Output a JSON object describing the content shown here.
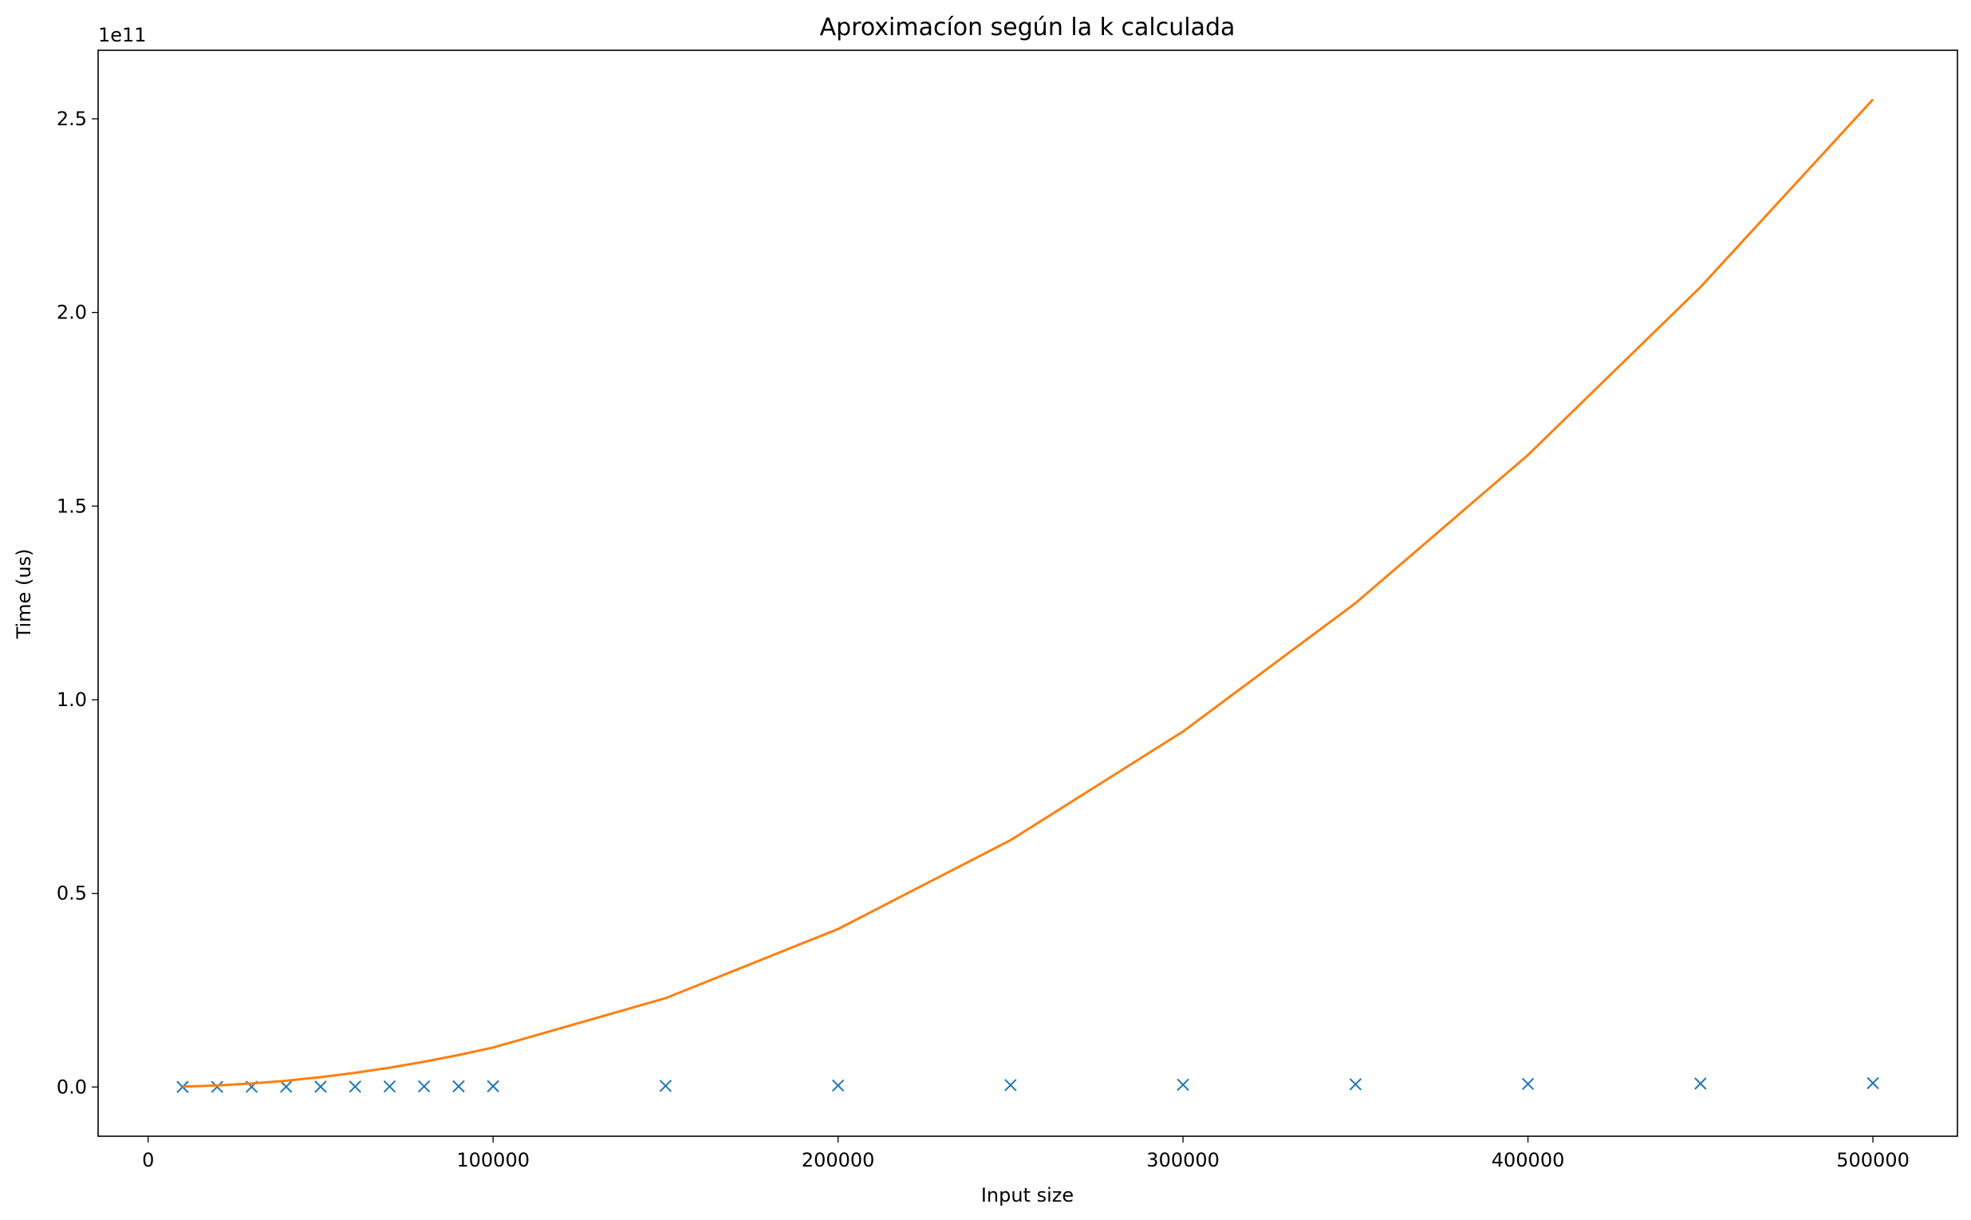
{
  "chart_data": {
    "type": "line",
    "title": "Aproximacíon según la k calculada",
    "xlabel": "Input size",
    "ylabel": "Time (us)",
    "y_offset_label": "1e11",
    "x": [
      10000,
      20000,
      30000,
      40000,
      50000,
      60000,
      70000,
      80000,
      90000,
      100000,
      150000,
      200000,
      250000,
      300000,
      350000,
      400000,
      450000,
      500000
    ],
    "series": [
      {
        "type": "scatter",
        "marker": "x",
        "color": "#1f77b4",
        "values": [
          0.0002,
          0.0004,
          0.0006,
          0.0008,
          0.001,
          0.0012,
          0.0014,
          0.0016,
          0.0018,
          0.002,
          0.003,
          0.004,
          0.005,
          0.006,
          0.007,
          0.008,
          0.009,
          0.01
        ]
      },
      {
        "type": "line",
        "color": "#ff7f0e",
        "values": [
          0.00102,
          0.00408,
          0.00918,
          0.0163,
          0.0255,
          0.0367,
          0.05,
          0.0653,
          0.0826,
          0.102,
          0.2295,
          0.408,
          0.6375,
          0.918,
          1.2495,
          1.632,
          2.0655,
          2.55
        ]
      }
    ],
    "xlim": [
      -14500,
      524500
    ],
    "xticks": [
      0,
      100000,
      200000,
      300000,
      400000,
      500000
    ],
    "ylim": [
      -0.127,
      2.677
    ],
    "yticks": [
      {
        "value": 0,
        "label": "0.0"
      },
      0.5,
      {
        "value": 1,
        "label": "1.0"
      },
      1.5,
      {
        "value": 2,
        "label": "2.0"
      },
      2.5
    ]
  }
}
